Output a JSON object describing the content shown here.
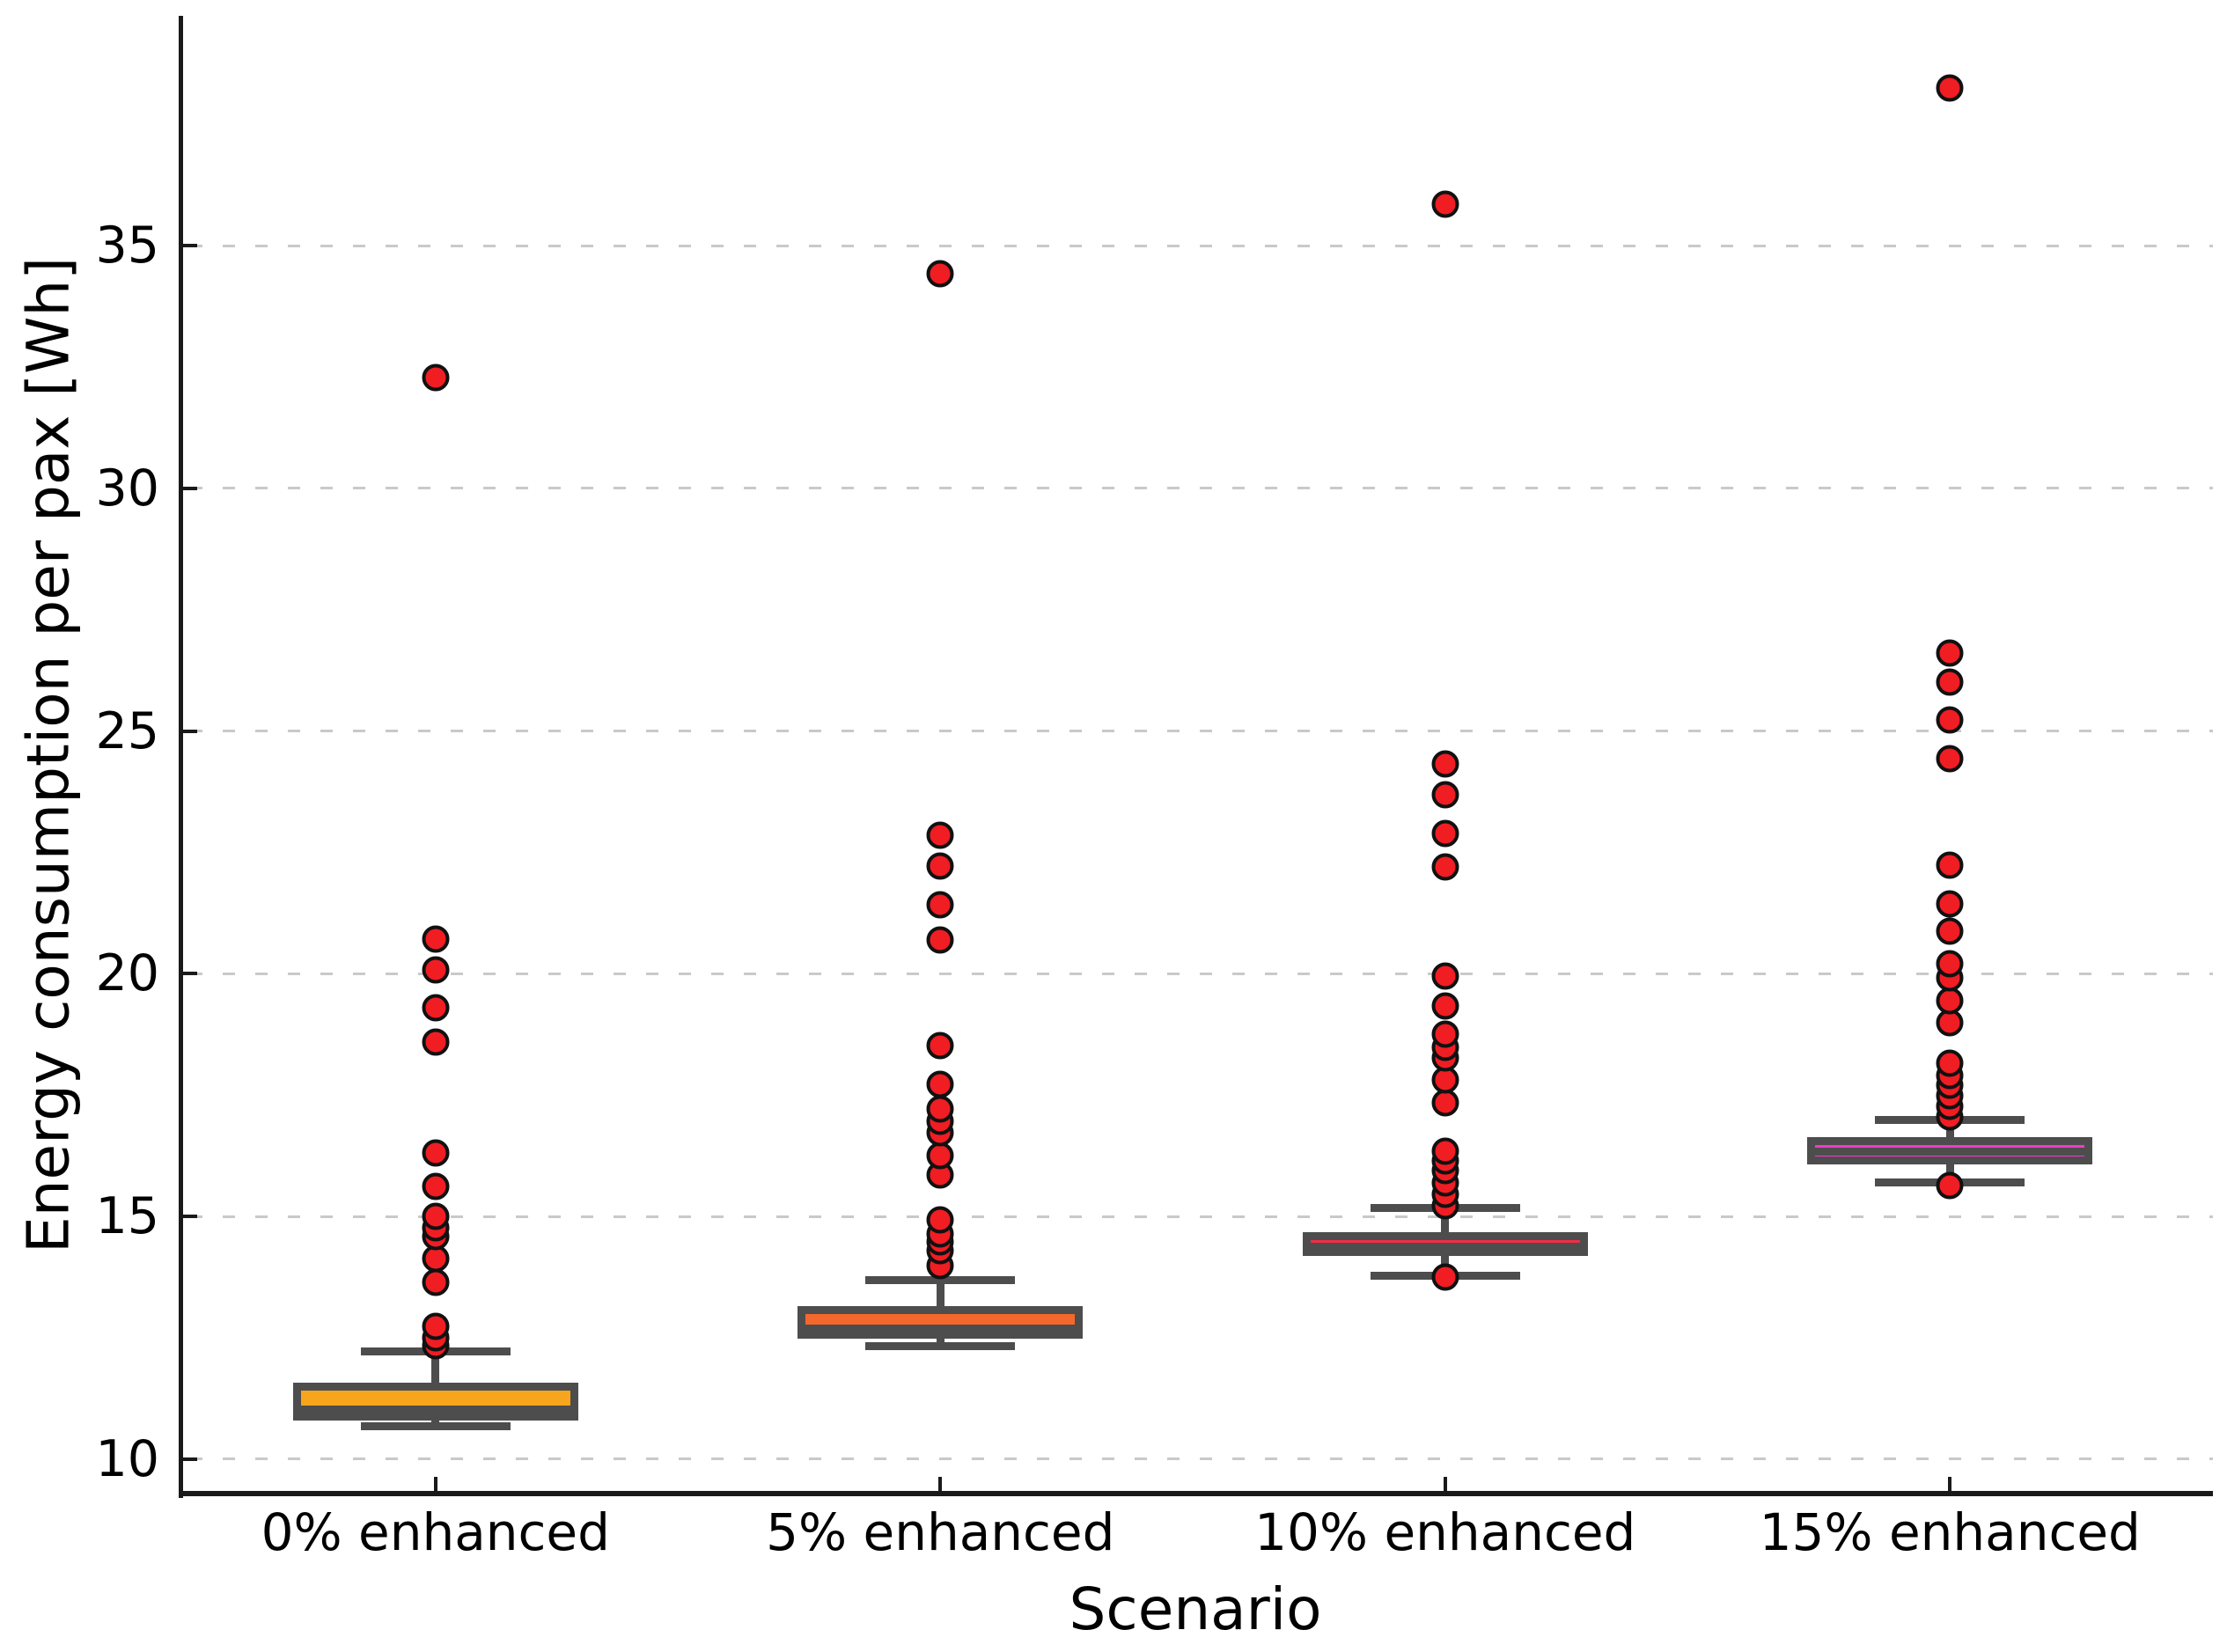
{
  "figure": {
    "background": "#FFFFFF"
  },
  "chart_data": {
    "type": "boxplot",
    "title": "",
    "xlabel": "Scenario",
    "ylabel": "Energy consumption per pax [Wh]",
    "ylim": [
      9.31,
      39.7
    ],
    "yticks": [
      10,
      15,
      20,
      25,
      30,
      35
    ],
    "grid": "horizontal-dashed",
    "legend": "none",
    "categories": [
      "0% enhanced",
      "5% enhanced",
      "10% enhanced",
      "15% enhanced"
    ],
    "series": [
      {
        "label": "0% enhanced",
        "box_color": "#F6A51D",
        "whisker_low": 10.67,
        "q1": 10.88,
        "median": 11.03,
        "q3": 11.5,
        "whisker_high": 12.22,
        "outliers": [
          12.33,
          12.51,
          12.73,
          13.64,
          14.13,
          14.58,
          14.76,
          15.0,
          15.62,
          16.31,
          18.59,
          19.3,
          20.08,
          20.71,
          32.28
        ]
      },
      {
        "label": "5% enhanced",
        "box_color": "#F4682C",
        "whisker_low": 12.32,
        "q1": 12.56,
        "median": 12.7,
        "q3": 13.08,
        "whisker_high": 13.68,
        "outliers": [
          13.98,
          14.29,
          14.47,
          14.65,
          14.93,
          15.85,
          16.25,
          16.72,
          16.97,
          17.21,
          17.72,
          18.52,
          20.7,
          21.42,
          22.22,
          22.85,
          34.42
        ]
      },
      {
        "label": "10% enhanced",
        "box_color": "#F32C44",
        "whisker_low": 13.78,
        "q1": 14.27,
        "median": 14.38,
        "q3": 14.6,
        "whisker_high": 15.18,
        "outliers": [
          13.75,
          15.22,
          15.46,
          15.7,
          15.95,
          16.15,
          16.35,
          17.35,
          17.81,
          18.26,
          18.48,
          18.75,
          19.33,
          19.95,
          22.2,
          22.89,
          23.68,
          24.32,
          35.85
        ]
      },
      {
        "label": "15% enhanced",
        "box_color": "#EE3CC8",
        "whisker_low": 15.71,
        "q1": 16.15,
        "median": 16.33,
        "q3": 16.55,
        "whisker_high": 16.99,
        "outliers": [
          15.64,
          17.05,
          17.27,
          17.48,
          17.7,
          17.91,
          18.16,
          19.0,
          19.45,
          19.91,
          20.2,
          20.87,
          21.44,
          22.23,
          24.43,
          25.23,
          26.01,
          26.6,
          38.25
        ]
      }
    ],
    "style": {
      "edge_color": "#4D4D4D",
      "flier_fill": "#F01D23",
      "flier_edge": "#111111",
      "grid_color": "#C9C9C9",
      "spine_color": "#1A1A1A",
      "text_color": "#000000"
    }
  }
}
